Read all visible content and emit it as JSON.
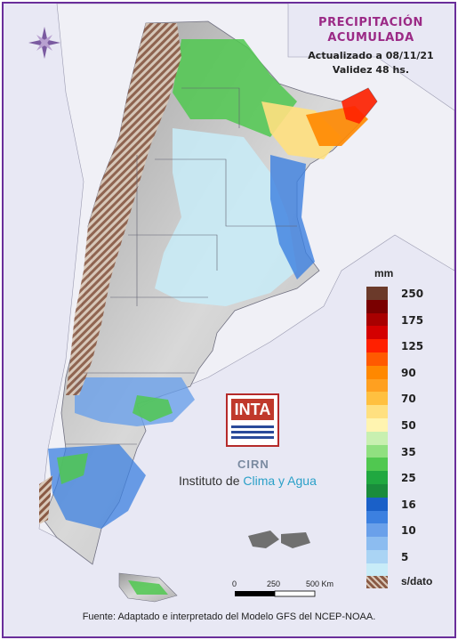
{
  "title": {
    "line1": "PRECIPITACIÓN",
    "line2": "ACUMULADA",
    "updated": "Actualizado a 08/11/21",
    "validity": "Validez 48 hs."
  },
  "legend": {
    "unit": "mm",
    "classes": [
      {
        "label": "250",
        "color": "#6b3a2a"
      },
      {
        "label": "",
        "color": "#7a0000"
      },
      {
        "label": "175",
        "color": "#a80000"
      },
      {
        "label": "",
        "color": "#d40000"
      },
      {
        "label": "125",
        "color": "#ff2000"
      },
      {
        "label": "",
        "color": "#ff5a00"
      },
      {
        "label": "90",
        "color": "#ff8800"
      },
      {
        "label": "",
        "color": "#ffa020"
      },
      {
        "label": "70",
        "color": "#ffc040"
      },
      {
        "label": "",
        "color": "#ffe080"
      },
      {
        "label": "50",
        "color": "#fff4b0"
      },
      {
        "label": "",
        "color": "#c8f0b0"
      },
      {
        "label": "35",
        "color": "#90e080"
      },
      {
        "label": "",
        "color": "#50c850"
      },
      {
        "label": "25",
        "color": "#20a840"
      },
      {
        "label": "",
        "color": "#1a8c3c"
      },
      {
        "label": "16",
        "color": "#1a60c8"
      },
      {
        "label": "",
        "color": "#3c80e0"
      },
      {
        "label": "10",
        "color": "#6aa0ea"
      },
      {
        "label": "",
        "color": "#8cbcf0"
      },
      {
        "label": "5",
        "color": "#aad4f4"
      },
      {
        "label": "",
        "color": "#c8ecf8"
      }
    ],
    "no_data_label": "s/dato"
  },
  "scale": {
    "labels": [
      "0",
      "250",
      "500 Km"
    ]
  },
  "logos": {
    "inta": "INTA",
    "cirn": "CIRN",
    "institute_prefix": "Instituto de ",
    "institute_highlight": "Clima y Agua"
  },
  "footer": "Fuente: Adaptado e interpretado del Modelo GFS del NCEP-NOAA.",
  "icons": {
    "compass": "compass-rose-icon"
  }
}
